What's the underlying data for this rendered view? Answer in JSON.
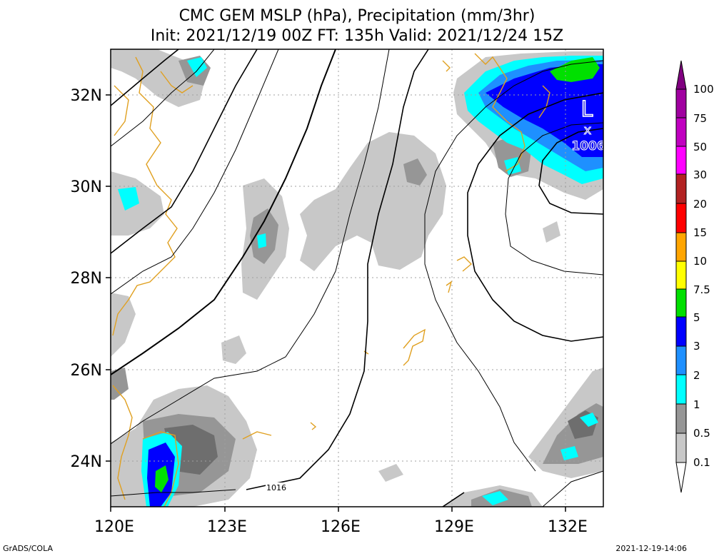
{
  "title": {
    "line1": "CMC GEM MSLP (hPa), Precipitation (mm/3hr)",
    "line2": "Init: 2021/12/19 00Z  FT: 135h  Valid: 2021/12/24 15Z"
  },
  "map": {
    "lon_range": [
      120,
      133
    ],
    "lat_range": [
      23,
      33
    ],
    "lon_ticks": [
      {
        "value": 120,
        "label": "120E"
      },
      {
        "value": 123,
        "label": "123E"
      },
      {
        "value": 126,
        "label": "126E"
      },
      {
        "value": 129,
        "label": "129E"
      },
      {
        "value": 132,
        "label": "132E"
      }
    ],
    "lat_ticks": [
      {
        "value": 24,
        "label": "24N"
      },
      {
        "value": 26,
        "label": "26N"
      },
      {
        "value": 28,
        "label": "28N"
      },
      {
        "value": 30,
        "label": "30N"
      },
      {
        "value": 32,
        "label": "32N"
      }
    ],
    "low_center": {
      "symbol": "L",
      "marker": "x",
      "value": "1006",
      "lon": 132.5,
      "lat": 31.2
    },
    "contour_label": {
      "text": "1016",
      "lon": 124.4,
      "lat": 23.1
    }
  },
  "legend": {
    "levels": [
      "0.1",
      "0.5",
      "1",
      "2",
      "3",
      "5",
      "7.5",
      "10",
      "15",
      "20",
      "30",
      "50",
      "75",
      "100"
    ],
    "colors": [
      "#ffffff",
      "#c8c8c8",
      "#969696",
      "#6e6e6e",
      "#00ffff",
      "#1e90ff",
      "#0000ff",
      "#00e000",
      "#ffff00",
      "#ffa500",
      "#ff0000",
      "#b22222",
      "#ff00ff",
      "#c000c0",
      "#800080"
    ]
  },
  "colors": {
    "coast": "#e0a020",
    "grid": "#a0a0a0",
    "low_label": "#2020e0"
  },
  "footer": {
    "left": "GrADS/COLA",
    "right": "2021-12-19-14:06"
  }
}
